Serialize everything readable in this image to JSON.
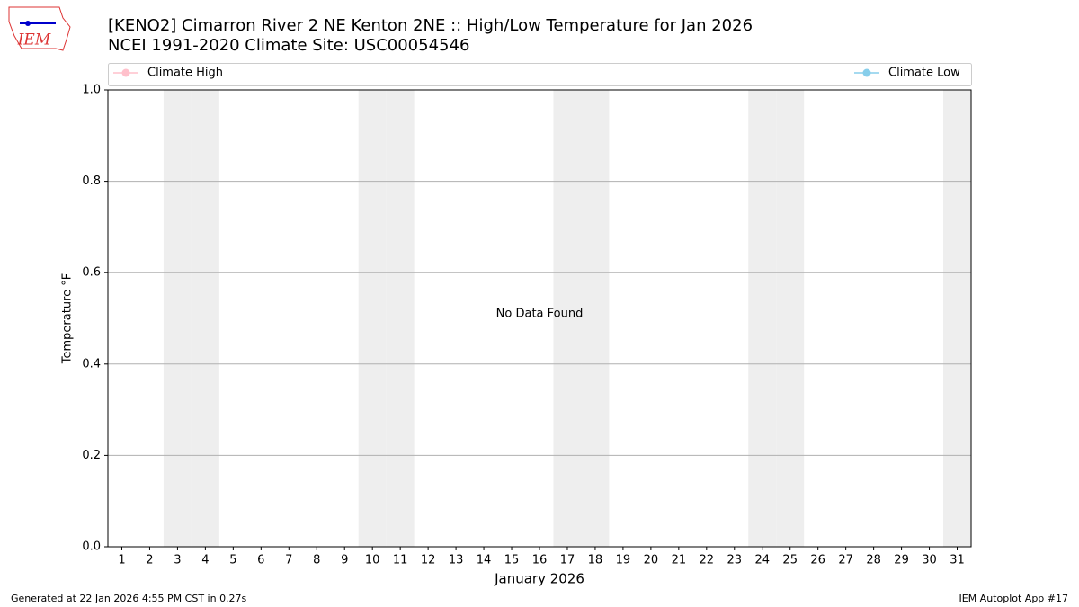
{
  "chart_data": {
    "type": "line",
    "title": "[KENO2] Cimarron River 2 NE Kenton 2NE :: High/Low Temperature for Jan 2026",
    "subtitle": "NCEI 1991-2020 Climate Site: USC00054546",
    "x_label": "January 2026",
    "y_label": "Temperature °F",
    "annotation": "No Data Found",
    "x": [
      1,
      2,
      3,
      4,
      5,
      6,
      7,
      8,
      9,
      10,
      11,
      12,
      13,
      14,
      15,
      16,
      17,
      18,
      19,
      20,
      21,
      22,
      23,
      24,
      25,
      26,
      27,
      28,
      29,
      30,
      31
    ],
    "series": [
      {
        "name": "Climate High",
        "color": "#ffc0cb",
        "values": [
          null,
          null,
          null,
          null,
          null,
          null,
          null,
          null,
          null,
          null,
          null,
          null,
          null,
          null,
          null,
          null,
          null,
          null,
          null,
          null,
          null,
          null,
          null,
          null,
          null,
          null,
          null,
          null,
          null,
          null,
          null
        ]
      },
      {
        "name": "Climate Low",
        "color": "#87ceeb",
        "values": [
          null,
          null,
          null,
          null,
          null,
          null,
          null,
          null,
          null,
          null,
          null,
          null,
          null,
          null,
          null,
          null,
          null,
          null,
          null,
          null,
          null,
          null,
          null,
          null,
          null,
          null,
          null,
          null,
          null,
          null,
          null
        ]
      }
    ],
    "xlim": [
      0.5,
      31.5
    ],
    "xticks": [
      1,
      2,
      3,
      4,
      5,
      6,
      7,
      8,
      9,
      10,
      11,
      12,
      13,
      14,
      15,
      16,
      17,
      18,
      19,
      20,
      21,
      22,
      23,
      24,
      25,
      26,
      27,
      28,
      29,
      30,
      31
    ],
    "ylim": [
      0,
      1
    ],
    "yticks": [
      {
        "value": 0,
        "label": "0.0"
      },
      {
        "value": 0.2,
        "label": "0.2"
      },
      {
        "value": 0.4,
        "label": "0.4"
      },
      {
        "value": 0.6,
        "label": "0.6"
      },
      {
        "value": 0.8,
        "label": "0.8"
      },
      {
        "value": 1,
        "label": "1.0"
      }
    ],
    "grid": true,
    "shaded_days": [
      3,
      4,
      10,
      11,
      17,
      18,
      24,
      25,
      31
    ],
    "shade_color": "#eeeeee"
  },
  "logo": "IEM",
  "footer": {
    "left": "Generated at 22 Jan 2026 4:55 PM CST in 0.27s",
    "right": "IEM Autoplot App #17"
  }
}
